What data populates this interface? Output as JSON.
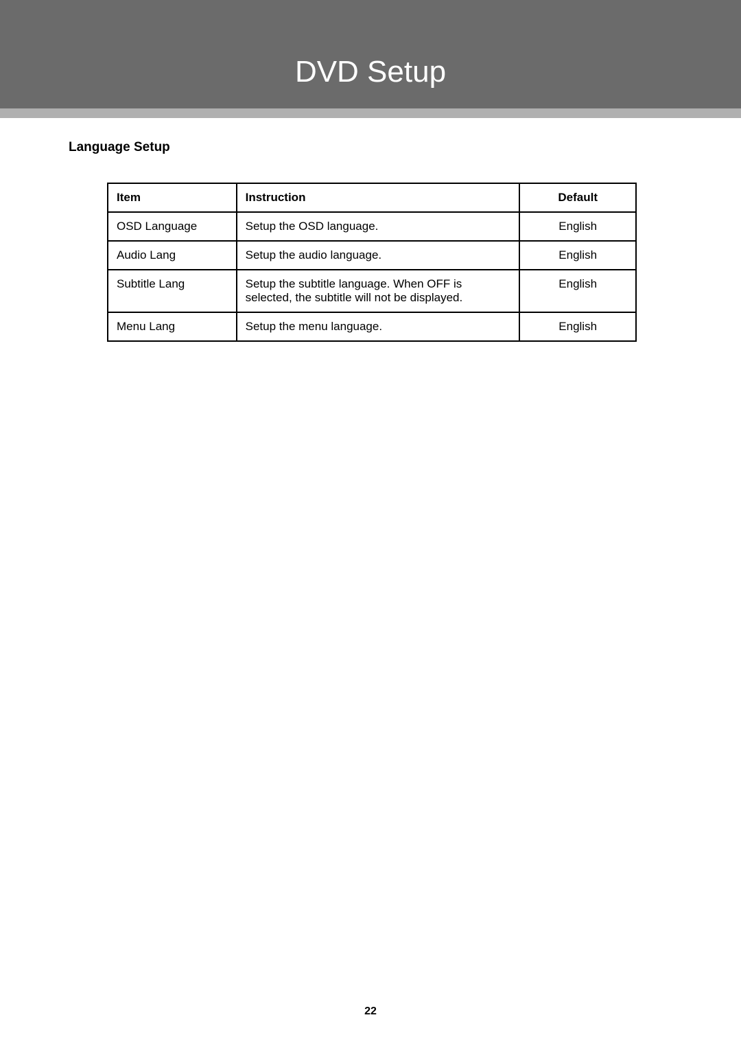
{
  "header": {
    "title": "DVD Setup"
  },
  "section": {
    "title": "Language Setup"
  },
  "table": {
    "columns": {
      "item": "Item",
      "instruction": "Instruction",
      "default": "Default"
    },
    "rows": [
      {
        "item": "OSD Language",
        "instruction": "Setup the OSD language.",
        "default": "English"
      },
      {
        "item": "Audio Lang",
        "instruction": "Setup the audio language.",
        "default": "English"
      },
      {
        "item": "Subtitle Lang",
        "instruction": "Setup the subtitle language. When OFF is selected, the subtitle will not be displayed.",
        "default": "English"
      },
      {
        "item": "Menu Lang",
        "instruction": "Setup the menu language.",
        "default": "English"
      }
    ]
  },
  "page_number": "22",
  "colors": {
    "header_bg": "#6b6b6b",
    "subbar_bg": "#b0b0b0",
    "title_color": "#ffffff",
    "border_color": "#000000",
    "text_color": "#000000",
    "page_bg": "#ffffff"
  }
}
